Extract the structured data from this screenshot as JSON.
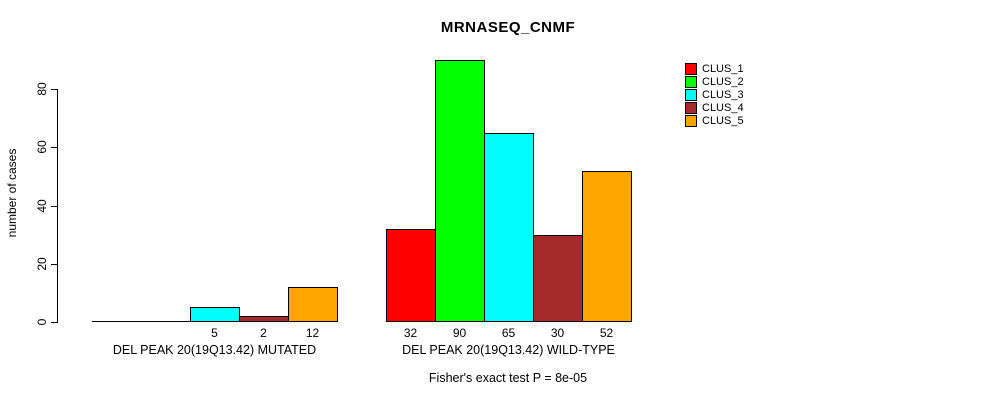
{
  "chart_data": {
    "type": "bar",
    "title": "MRNASEQ_CNMF",
    "ylabel": "number of cases",
    "ylim": [
      0,
      90
    ],
    "yticks": [
      0,
      20,
      40,
      60,
      80
    ],
    "grid": false,
    "legend_position": "top-right",
    "axis_color": "#000000",
    "clusters": [
      {
        "name": "CLUS_1",
        "color": "#FF0000"
      },
      {
        "name": "CLUS_2",
        "color": "#00FF00"
      },
      {
        "name": "CLUS_3",
        "color": "#00FFFF"
      },
      {
        "name": "CLUS_4",
        "color": "#A52A2A"
      },
      {
        "name": "CLUS_5",
        "color": "#FFA500"
      }
    ],
    "groups": [
      {
        "label": "DEL PEAK 20(19Q13.42) MUTATED",
        "values": [
          0,
          0,
          5,
          2,
          12
        ],
        "bar_labels": [
          "",
          "",
          "5",
          "2",
          "12"
        ]
      },
      {
        "label": "DEL PEAK 20(19Q13.42) WILD-TYPE",
        "values": [
          32,
          90,
          65,
          30,
          52
        ],
        "bar_labels": [
          "32",
          "90",
          "65",
          "30",
          "52"
        ]
      }
    ],
    "annotation": "Fisher's exact test P = 8e-05"
  }
}
